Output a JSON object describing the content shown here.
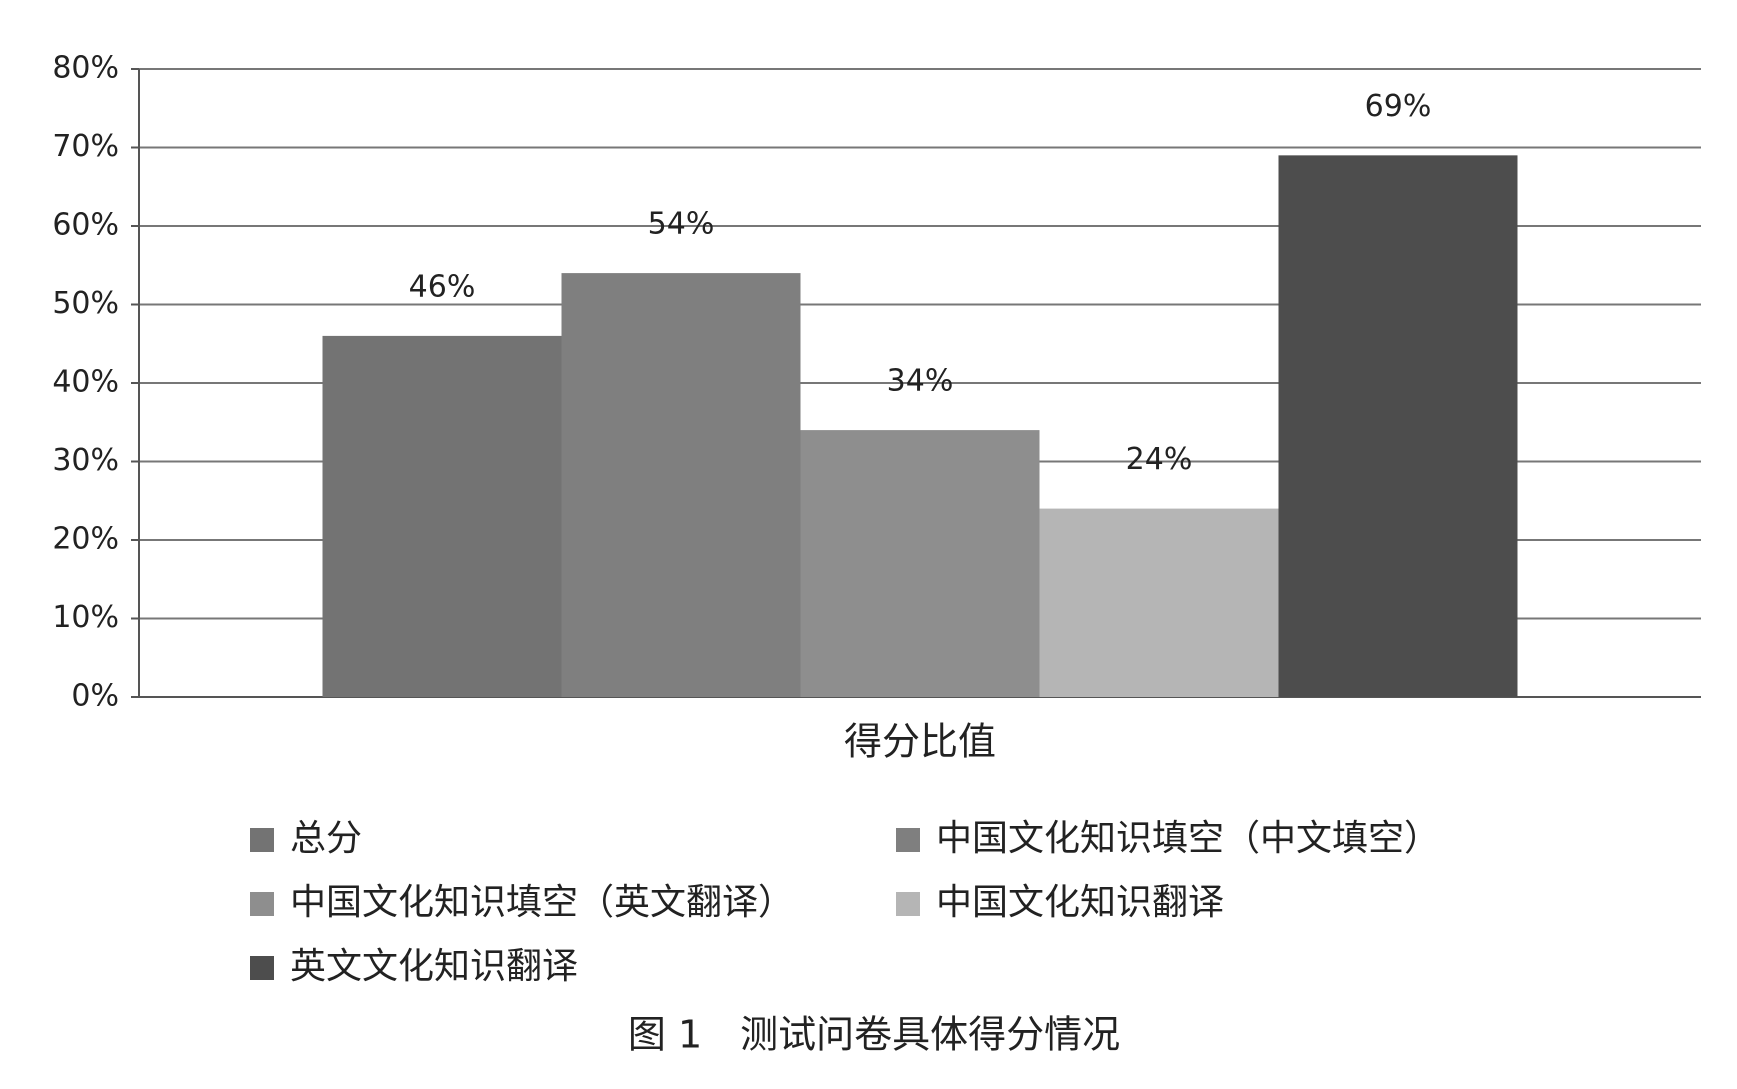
{
  "chart_data": {
    "type": "bar",
    "categories": [
      "得分比值"
    ],
    "series": [
      {
        "name": "总分",
        "color": "#737373",
        "values": [
          46
        ],
        "value_labels": [
          "46%"
        ]
      },
      {
        "name": "中国文化知识填空（中文填空）",
        "color": "#7f7f7f",
        "values": [
          54
        ],
        "value_labels": [
          "54%"
        ]
      },
      {
        "name": "中国文化知识填空（英文翻译）",
        "color": "#8e8e8e",
        "values": [
          34
        ],
        "value_labels": [
          "34%"
        ]
      },
      {
        "name": "中国文化知识翻译",
        "color": "#b5b5b5",
        "values": [
          24
        ],
        "value_labels": [
          "24%"
        ]
      },
      {
        "name": "英文文化知识翻译",
        "color": "#4d4d4d",
        "values": [
          69
        ],
        "value_labels": [
          "69%"
        ]
      }
    ],
    "ylim": [
      0,
      80
    ],
    "yticks": [
      {
        "value": 0,
        "label": "0%"
      },
      {
        "value": 10,
        "label": "10%"
      },
      {
        "value": 20,
        "label": "20%"
      },
      {
        "value": 30,
        "label": "30%"
      },
      {
        "value": 40,
        "label": "40%"
      },
      {
        "value": 50,
        "label": "50%"
      },
      {
        "value": 60,
        "label": "60%"
      },
      {
        "value": 70,
        "label": "70%"
      },
      {
        "value": 80,
        "label": "80%"
      }
    ],
    "grid": true,
    "caption": "图 1　测试问卷具体得分情况"
  }
}
